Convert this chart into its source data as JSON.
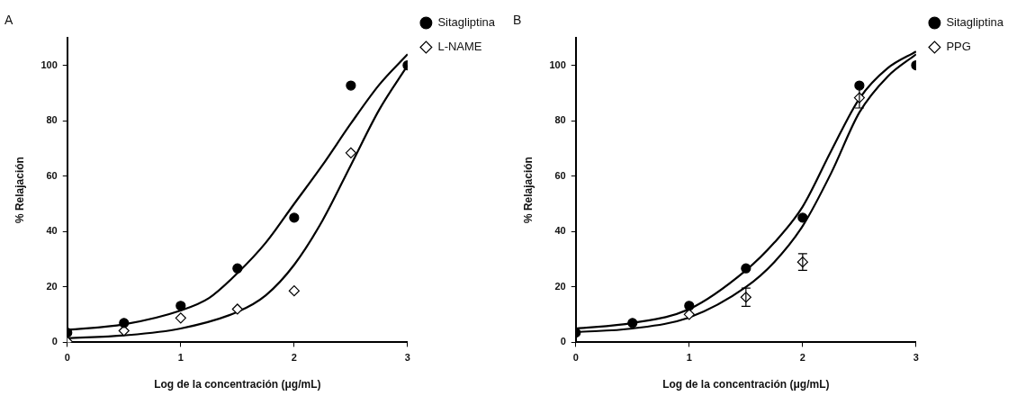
{
  "chart_data": [
    {
      "type": "scatter",
      "title": "A",
      "xlabel": "Log de la concentración (μg/mL)",
      "ylabel": "% Relajación",
      "xlim": [
        0,
        3
      ],
      "xticks": [
        0,
        1,
        2,
        3
      ],
      "ylim": [
        0,
        110
      ],
      "yticks": [
        0,
        20,
        40,
        60,
        80,
        100
      ],
      "grid": false,
      "legend": "right",
      "series": [
        {
          "name": "Sitagliptina",
          "color": "#000000",
          "marker": "circle",
          "x": [
            0,
            0.5,
            1,
            1.5,
            2,
            2.5,
            3
          ],
          "values": [
            3.5,
            7,
            13.2,
            26.7,
            45,
            92.7,
            100
          ]
        },
        {
          "name": "L-NAME",
          "color": "#000000",
          "marker": "diamond",
          "x": [
            0,
            0.5,
            1,
            1.5,
            2,
            2.5
          ],
          "values": [
            0.3,
            4.2,
            8.8,
            12,
            18.6,
            68.4
          ]
        },
        {
          "type": "line",
          "color": "#000000",
          "marker": "none",
          "x": [
            0,
            0.5,
            1,
            1.25,
            1.5,
            1.75,
            2,
            2.25,
            2.5,
            2.75,
            3
          ],
          "values": [
            4.5,
            6.5,
            11.5,
            16,
            25,
            36,
            50,
            64,
            79,
            93,
            104
          ]
        },
        {
          "type": "line",
          "color": "#000000",
          "marker": "none",
          "x": [
            0,
            0.5,
            1,
            1.5,
            1.75,
            2,
            2.25,
            2.5,
            2.75,
            3
          ],
          "values": [
            1.5,
            2.5,
            5,
            11,
            17,
            28,
            44,
            64,
            84,
            100
          ]
        }
      ]
    },
    {
      "type": "scatter",
      "title": "B",
      "xlabel": "Log de la concentración (μg/mL)",
      "ylabel": "% Relajación",
      "xlim": [
        0,
        3
      ],
      "xticks": [
        0,
        1,
        2,
        3
      ],
      "ylim": [
        0,
        110
      ],
      "yticks": [
        0,
        20,
        40,
        60,
        80,
        100
      ],
      "grid": false,
      "legend": "right",
      "series": [
        {
          "name": "Sitagliptina",
          "color": "#000000",
          "marker": "circle",
          "x": [
            0,
            0.5,
            1,
            1.5,
            2,
            2.5,
            3
          ],
          "values": [
            3.5,
            7,
            13.2,
            26.7,
            45,
            92.7,
            100
          ]
        },
        {
          "name": "PPG",
          "color": "#000000",
          "marker": "diamond",
          "x": [
            1,
            1.5,
            2,
            2.5
          ],
          "values": [
            10.1,
            16.3,
            29,
            88.3
          ],
          "errors": [
            null,
            3.3,
            3,
            3.7
          ]
        },
        {
          "type": "line",
          "color": "#000000",
          "marker": "none",
          "x": [
            0,
            0.5,
            1,
            1.5,
            1.75,
            2,
            2.25,
            2.5,
            2.75,
            3
          ],
          "values": [
            5,
            7,
            12,
            26,
            36,
            49,
            69,
            88,
            99,
            105
          ]
        },
        {
          "type": "line",
          "color": "#000000",
          "marker": "none",
          "x": [
            0,
            0.5,
            1,
            1.5,
            1.75,
            2,
            2.25,
            2.5,
            2.75,
            3
          ],
          "values": [
            3.7,
            5,
            9,
            20,
            29,
            42,
            61,
            83,
            96,
            104
          ]
        }
      ]
    }
  ]
}
